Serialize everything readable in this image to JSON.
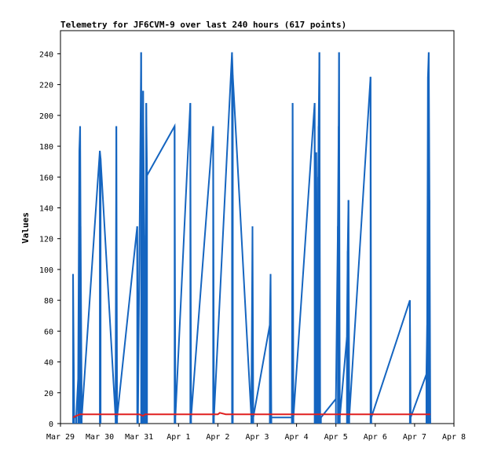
{
  "chart_data": {
    "type": "line",
    "title": "Telemetry for JF6CVM-9 over last 240 hours (617 points)",
    "xlabel": "",
    "ylabel": "Values",
    "xlim": [
      "Mar 29",
      "Apr 8"
    ],
    "ylim": [
      0,
      255
    ],
    "x_ticks": [
      "Mar 29",
      "Mar 30",
      "Mar 31",
      "Apr 1",
      "Apr 2",
      "Apr 3",
      "Apr 4",
      "Apr 5",
      "Apr 6",
      "Apr 7",
      "Apr 8"
    ],
    "y_ticks": [
      0,
      20,
      40,
      60,
      80,
      100,
      120,
      140,
      160,
      180,
      200,
      220,
      240
    ],
    "grid": false,
    "colors": {
      "series_blue": "#1565c0",
      "series_red": "#e02020",
      "axis": "#000000"
    },
    "series": [
      {
        "color": "#1565c0",
        "x_days": [
          0.36,
          0.37,
          0.37,
          0.44,
          0.46,
          0.48,
          0.49,
          0.5,
          0.51,
          0.53,
          0.54,
          0.55,
          0.55,
          0.56,
          0.57,
          0.58,
          0.58,
          0.6,
          0.6,
          0.61,
          0.61,
          0.62,
          0.62,
          0.65,
          0.65,
          0.66,
          0.66,
          0.68,
          0.68,
          0.69,
          0.69,
          0.7,
          0.7,
          0.71,
          0.71,
          0.72,
          0.72,
          1.08,
          1.09,
          1.1,
          1.11,
          1.12,
          1.5,
          1.51,
          1.52,
          1.53,
          1.54,
          1.54,
          2.26,
          2.27,
          2.28,
          2.37,
          2.38,
          2.39,
          2.4,
          2.41,
          2.42,
          2.43,
          2.44,
          2.45,
          2.46,
          2.47,
          2.48,
          2.5,
          2.51,
          2.52,
          2.53,
          2.54,
          2.55,
          2.56,
          2.57,
          2.58,
          2.6,
          2.61,
          2.62,
          2.63,
          2.64,
          2.65,
          2.66,
          3.27,
          3.28,
          3.29,
          3.3,
          3.31,
          3.32,
          3.86,
          3.87,
          3.88,
          3.89,
          4.47,
          4.48,
          4.49,
          4.5,
          4.96,
          4.97,
          4.98,
          4.99,
          5.0,
          5.01,
          5.02,
          5.03,
          5.04,
          5.05,
          5.06,
          5.07,
          5.5,
          5.51,
          5.52,
          5.97,
          5.98,
          5.99,
          5.99,
          6.0,
          6.0,
          6.01,
          6.4,
          6.41,
          6.42,
          6.43,
          6.44,
          6.45,
          6.46,
          6.47,
          6.48,
          6.49,
          6.5,
          6.51,
          6.52,
          6.53,
          6.54,
          6.55,
          6.56,
          6.57,
          6.58,
          6.59,
          6.6,
          6.61,
          6.62,
          6.63,
          6.64,
          6.65,
          6.66,
          6.67,
          6.68,
          6.69,
          6.7,
          6.71,
          6.72,
          6.73,
          6.74,
          6.75,
          6.76,
          6.77,
          6.78,
          6.79,
          6.8,
          6.81,
          6.82,
          6.83,
          6.84,
          6.85,
          6.86,
          6.87,
          6.88,
          6.89,
          6.9,
          6.91,
          6.92,
          6.93,
          6.94,
          6.95,
          6.96,
          6.97,
          6.98,
          6.99,
          7.0,
          7.01,
          7.02,
          7.03,
          7.04,
          7.05,
          7.06,
          7.07,
          7.08,
          7.09,
          7.1,
          7.11,
          7.12,
          7.13,
          7.14,
          7.15,
          7.16,
          7.17,
          7.18,
          7.19,
          7.2,
          7.21,
          7.22,
          7.23,
          7.24,
          7.25,
          7.26,
          7.27,
          7.28,
          7.29,
          7.3,
          7.31,
          7.32,
          7.33,
          7.34,
          7.35,
          7.36,
          7.37,
          7.38,
          7.39,
          7.4,
          7.41,
          7.42,
          7.43,
          7.44,
          7.45,
          7.46,
          7.47,
          7.48,
          7.49,
          7.5,
          7.51,
          7.52,
          7.53,
          7.54,
          7.55,
          7.56,
          7.57,
          7.58,
          7.59,
          7.6,
          7.61,
          7.62,
          7.63,
          7.64,
          7.65,
          7.66,
          7.67,
          7.68,
          7.69,
          7.7,
          7.71,
          7.72,
          7.73,
          7.74,
          7.75,
          7.76,
          7.77,
          7.78,
          7.79,
          7.8,
          7.81,
          7.82,
          7.83,
          7.84,
          7.85,
          7.86,
          7.87,
          7.88,
          7.89,
          7.9,
          7.91,
          7.92,
          7.93,
          7.94,
          7.95,
          7.96,
          7.97,
          7.98,
          7.99,
          8.0,
          8.01,
          8.02,
          8.03,
          8.04,
          8.05,
          8.06,
          8.07,
          8.08,
          8.09,
          8.1,
          8.11,
          8.12,
          8.13,
          8.14,
          8.15,
          8.16,
          8.17,
          8.18,
          8.19,
          8.2,
          8.21,
          8.22,
          8.23,
          8.24,
          8.25,
          8.26,
          8.27,
          8.28,
          8.29,
          8.3,
          8.31,
          8.32,
          8.33,
          8.34,
          8.35,
          8.36,
          8.37,
          8.38,
          8.39,
          8.4,
          8.41,
          8.42,
          8.43,
          8.44,
          8.45,
          8.46,
          8.47,
          8.48,
          8.49,
          8.5,
          8.51,
          8.52,
          8.53,
          8.54,
          8.55,
          8.56,
          8.57,
          8.58,
          8.59,
          8.6,
          8.61,
          8.62,
          8.63,
          8.64,
          8.65,
          8.66,
          8.67,
          8.68,
          8.69,
          8.7,
          8.71,
          8.72,
          8.73,
          8.74,
          8.75,
          8.76,
          8.77,
          8.78,
          8.79,
          8.8,
          8.81,
          8.82,
          8.83,
          8.84,
          8.85,
          8.86,
          8.87,
          8.88,
          8.89,
          8.9,
          8.91,
          8.92,
          8.93,
          8.94,
          8.95,
          8.96,
          8.97,
          8.98,
          8.99,
          9.0,
          9.01,
          9.02,
          9.03,
          9.04,
          9.05,
          9.06,
          9.07,
          9.08,
          9.09,
          9.1,
          9.11,
          9.12,
          9.13,
          9.14,
          9.15,
          9.16,
          9.17,
          9.18,
          9.19,
          9.2,
          9.21,
          9.22,
          9.23,
          9.24,
          9.25,
          9.26,
          9.27,
          9.28,
          9.29,
          9.3,
          9.31,
          9.32,
          9.33,
          9.34,
          9.35,
          9.36,
          9.37,
          9.38,
          9.39,
          9.4,
          9.41,
          9.42,
          9.43,
          9.44,
          9.45,
          9.46,
          9.47,
          9.48,
          9.49,
          9.5
        ],
        "spikes": [
          [
            0.32,
            97
          ],
          [
            0.35,
            4
          ],
          [
            0.4,
            4
          ],
          [
            0.45,
            29
          ],
          [
            0.48,
            177
          ],
          [
            0.5,
            193
          ],
          [
            0.51,
            128
          ],
          [
            0.54,
            4
          ],
          [
            1.0,
            177
          ],
          [
            1.02,
            172
          ],
          [
            1.4,
            4
          ],
          [
            1.42,
            193
          ],
          [
            1.44,
            4
          ],
          [
            1.95,
            128
          ],
          [
            1.97,
            4
          ],
          [
            2.05,
            241
          ],
          [
            2.08,
            4
          ],
          [
            2.1,
            216
          ],
          [
            2.13,
            122
          ],
          [
            2.16,
            4
          ],
          [
            2.18,
            208
          ],
          [
            2.2,
            161
          ],
          [
            2.9,
            193
          ],
          [
            2.92,
            4
          ],
          [
            3.3,
            208
          ],
          [
            3.32,
            4
          ],
          [
            3.88,
            193
          ],
          [
            3.9,
            4
          ],
          [
            4.36,
            241
          ],
          [
            4.38,
            226
          ],
          [
            4.85,
            4
          ],
          [
            4.88,
            128
          ],
          [
            4.9,
            4
          ],
          [
            5.32,
            64
          ],
          [
            5.34,
            97
          ],
          [
            5.36,
            4
          ],
          [
            5.88,
            4
          ],
          [
            5.9,
            208
          ],
          [
            5.92,
            4
          ],
          [
            6.46,
            208
          ],
          [
            6.48,
            4
          ],
          [
            6.5,
            176
          ],
          [
            6.52,
            104
          ],
          [
            6.54,
            4
          ],
          [
            6.55,
            160
          ],
          [
            6.56,
            193
          ],
          [
            6.58,
            241
          ],
          [
            6.6,
            4
          ],
          [
            6.62,
            4
          ],
          [
            7.0,
            16
          ],
          [
            7.05,
            128
          ],
          [
            7.07,
            193
          ],
          [
            7.08,
            241
          ],
          [
            7.1,
            4
          ],
          [
            7.28,
            56
          ],
          [
            7.3,
            112
          ],
          [
            7.32,
            145
          ],
          [
            7.34,
            4
          ],
          [
            7.88,
            225
          ],
          [
            7.9,
            4
          ],
          [
            8.88,
            80
          ],
          [
            8.9,
            4
          ],
          [
            9.3,
            32
          ],
          [
            9.32,
            64
          ],
          [
            9.34,
            225
          ],
          [
            9.36,
            241
          ],
          [
            9.38,
            145
          ],
          [
            9.4,
            4
          ]
        ]
      },
      {
        "color": "#e02020",
        "points": [
          [
            0.32,
            4
          ],
          [
            0.4,
            5
          ],
          [
            0.5,
            6
          ],
          [
            2.0,
            6
          ],
          [
            2.1,
            5
          ],
          [
            2.15,
            6
          ],
          [
            4.0,
            6
          ],
          [
            4.05,
            7
          ],
          [
            4.2,
            6
          ],
          [
            4.4,
            6
          ],
          [
            9.4,
            6
          ]
        ]
      }
    ]
  }
}
